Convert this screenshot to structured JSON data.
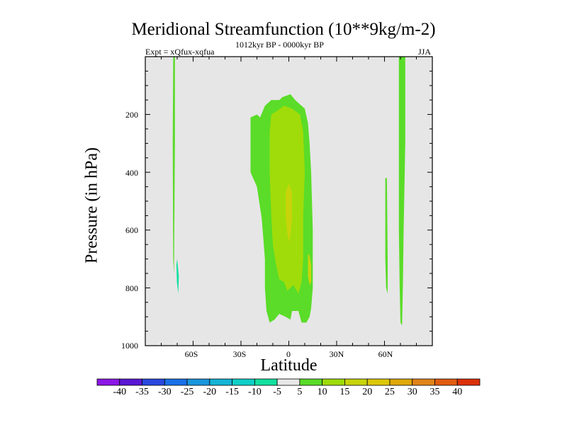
{
  "chart_data": {
    "type": "contour",
    "title": "Meridional Streamfunction (10**9kg/m-2)",
    "subtitle": "1012kyr BP - 0000kyr BP",
    "left_string": "Expt = xQfux-xqfua",
    "right_string": "JJA",
    "xlabel": "Latitude",
    "ylabel": "Pressure (in hPa)",
    "xlim": [
      -90,
      90
    ],
    "ylim": [
      1000,
      0
    ],
    "x_ticks": [
      {
        "value": -60,
        "label": "60S"
      },
      {
        "value": -30,
        "label": "30S"
      },
      {
        "value": 0,
        "label": "0"
      },
      {
        "value": 30,
        "label": "30N"
      },
      {
        "value": 60,
        "label": "60N"
      }
    ],
    "y_ticks": [
      {
        "value": 200,
        "label": "200"
      },
      {
        "value": 400,
        "label": "400"
      },
      {
        "value": 600,
        "label": "600"
      },
      {
        "value": 800,
        "label": "800"
      },
      {
        "value": 1000,
        "label": "1000"
      }
    ],
    "background_color": "#e6e6e6",
    "levels": [
      -40,
      -35,
      -30,
      -25,
      -20,
      -15,
      -10,
      -5,
      5,
      10,
      15,
      20,
      25,
      30,
      35,
      40
    ],
    "level_labels": [
      "-40",
      "-35",
      "-30",
      "-25",
      "-20",
      "-15",
      "-10",
      "-5",
      "5",
      "10",
      "15",
      "20",
      "25",
      "30",
      "35",
      "40"
    ],
    "colors": [
      "#8c17e6",
      "#5a17d6",
      "#2a48e0",
      "#1a70e8",
      "#1996de",
      "#14b4d6",
      "#0fd0c8",
      "#12e0a0",
      "#e8e8e8",
      "#5adc28",
      "#a0dc0a",
      "#c8d40a",
      "#dcc808",
      "#e0a80a",
      "#e08418",
      "#e05c10",
      "#dc3008"
    ],
    "regions": [
      {
        "name": "antarctic-thin-positive",
        "level": "5",
        "color": "#5adc28",
        "points": [
          [
            -72.5,
            0
          ],
          [
            -71.4,
            0
          ],
          [
            -71.4,
            300
          ],
          [
            -72,
            750
          ],
          [
            -72.5,
            700
          ],
          [
            -72.8,
            300
          ]
        ]
      },
      {
        "name": "antarctic-negative-pocket",
        "level": "-5",
        "color": "#12e0a0",
        "points": [
          [
            -70,
            700
          ],
          [
            -69,
            760
          ],
          [
            -69.3,
            820
          ],
          [
            -70.2,
            780
          ],
          [
            -70.5,
            720
          ]
        ]
      },
      {
        "name": "tropical-cell-outer",
        "level": "5",
        "color": "#5adc28",
        "points": [
          [
            -24,
            210
          ],
          [
            -20,
            200
          ],
          [
            -18,
            210
          ],
          [
            -15,
            170
          ],
          [
            -11,
            150
          ],
          [
            -8,
            150
          ],
          [
            -6,
            150
          ],
          [
            -4,
            140
          ],
          [
            1,
            130
          ],
          [
            4,
            150
          ],
          [
            10,
            180
          ],
          [
            12,
            230
          ],
          [
            13,
            300
          ],
          [
            14,
            400
          ],
          [
            15,
            600
          ],
          [
            15,
            800
          ],
          [
            14,
            870
          ],
          [
            13,
            900
          ],
          [
            11,
            920
          ],
          [
            8,
            920
          ],
          [
            6,
            880
          ],
          [
            2,
            880
          ],
          [
            1,
            910
          ],
          [
            -2,
            900
          ],
          [
            -6,
            890
          ],
          [
            -9,
            910
          ],
          [
            -12,
            920
          ],
          [
            -14,
            880
          ],
          [
            -15,
            800
          ],
          [
            -15,
            700
          ],
          [
            -17,
            560
          ],
          [
            -20,
            450
          ],
          [
            -24,
            400
          ],
          [
            -24,
            300
          ]
        ]
      },
      {
        "name": "tropical-cell-mid",
        "level": "10",
        "color": "#a0dc0a",
        "points": [
          [
            -11,
            200
          ],
          [
            -8,
            190
          ],
          [
            -3,
            170
          ],
          [
            2,
            180
          ],
          [
            7,
            200
          ],
          [
            9,
            260
          ],
          [
            10,
            400
          ],
          [
            9,
            550
          ],
          [
            9,
            700
          ],
          [
            8,
            780
          ],
          [
            6,
            820
          ],
          [
            3,
            790
          ],
          [
            1,
            800
          ],
          [
            -1,
            810
          ],
          [
            -3,
            780
          ],
          [
            -6,
            770
          ],
          [
            -8,
            720
          ],
          [
            -10,
            650
          ],
          [
            -11,
            550
          ],
          [
            -12,
            400
          ],
          [
            -12,
            260
          ]
        ]
      },
      {
        "name": "tropical-cell-core",
        "level": "15",
        "color": "#c8d40a",
        "points": [
          [
            -2,
            470
          ],
          [
            0,
            440
          ],
          [
            2,
            470
          ],
          [
            2,
            560
          ],
          [
            1,
            620
          ],
          [
            0,
            640
          ],
          [
            -1,
            610
          ],
          [
            -2,
            550
          ]
        ]
      },
      {
        "name": "tropical-cell-right-patch",
        "level": "15",
        "color": "#c8d40a",
        "points": [
          [
            12,
            680
          ],
          [
            13,
            690
          ],
          [
            14,
            720
          ],
          [
            14,
            780
          ],
          [
            13,
            790
          ],
          [
            12,
            760
          ]
        ]
      },
      {
        "name": "arctic-left-strip",
        "level": "5",
        "color": "#5adc28",
        "points": [
          [
            60.5,
            420
          ],
          [
            61.5,
            420
          ],
          [
            62,
            700
          ],
          [
            62,
            820
          ],
          [
            61,
            800
          ],
          [
            60.5,
            700
          ]
        ]
      },
      {
        "name": "arctic-right-strip",
        "level": "5",
        "color": "#5adc28",
        "points": [
          [
            69,
            0
          ],
          [
            73,
            0
          ],
          [
            73,
            300
          ],
          [
            72,
            600
          ],
          [
            71.5,
            800
          ],
          [
            71,
            930
          ],
          [
            70,
            920
          ],
          [
            69.5,
            800
          ],
          [
            69,
            600
          ],
          [
            69,
            300
          ]
        ]
      }
    ]
  }
}
